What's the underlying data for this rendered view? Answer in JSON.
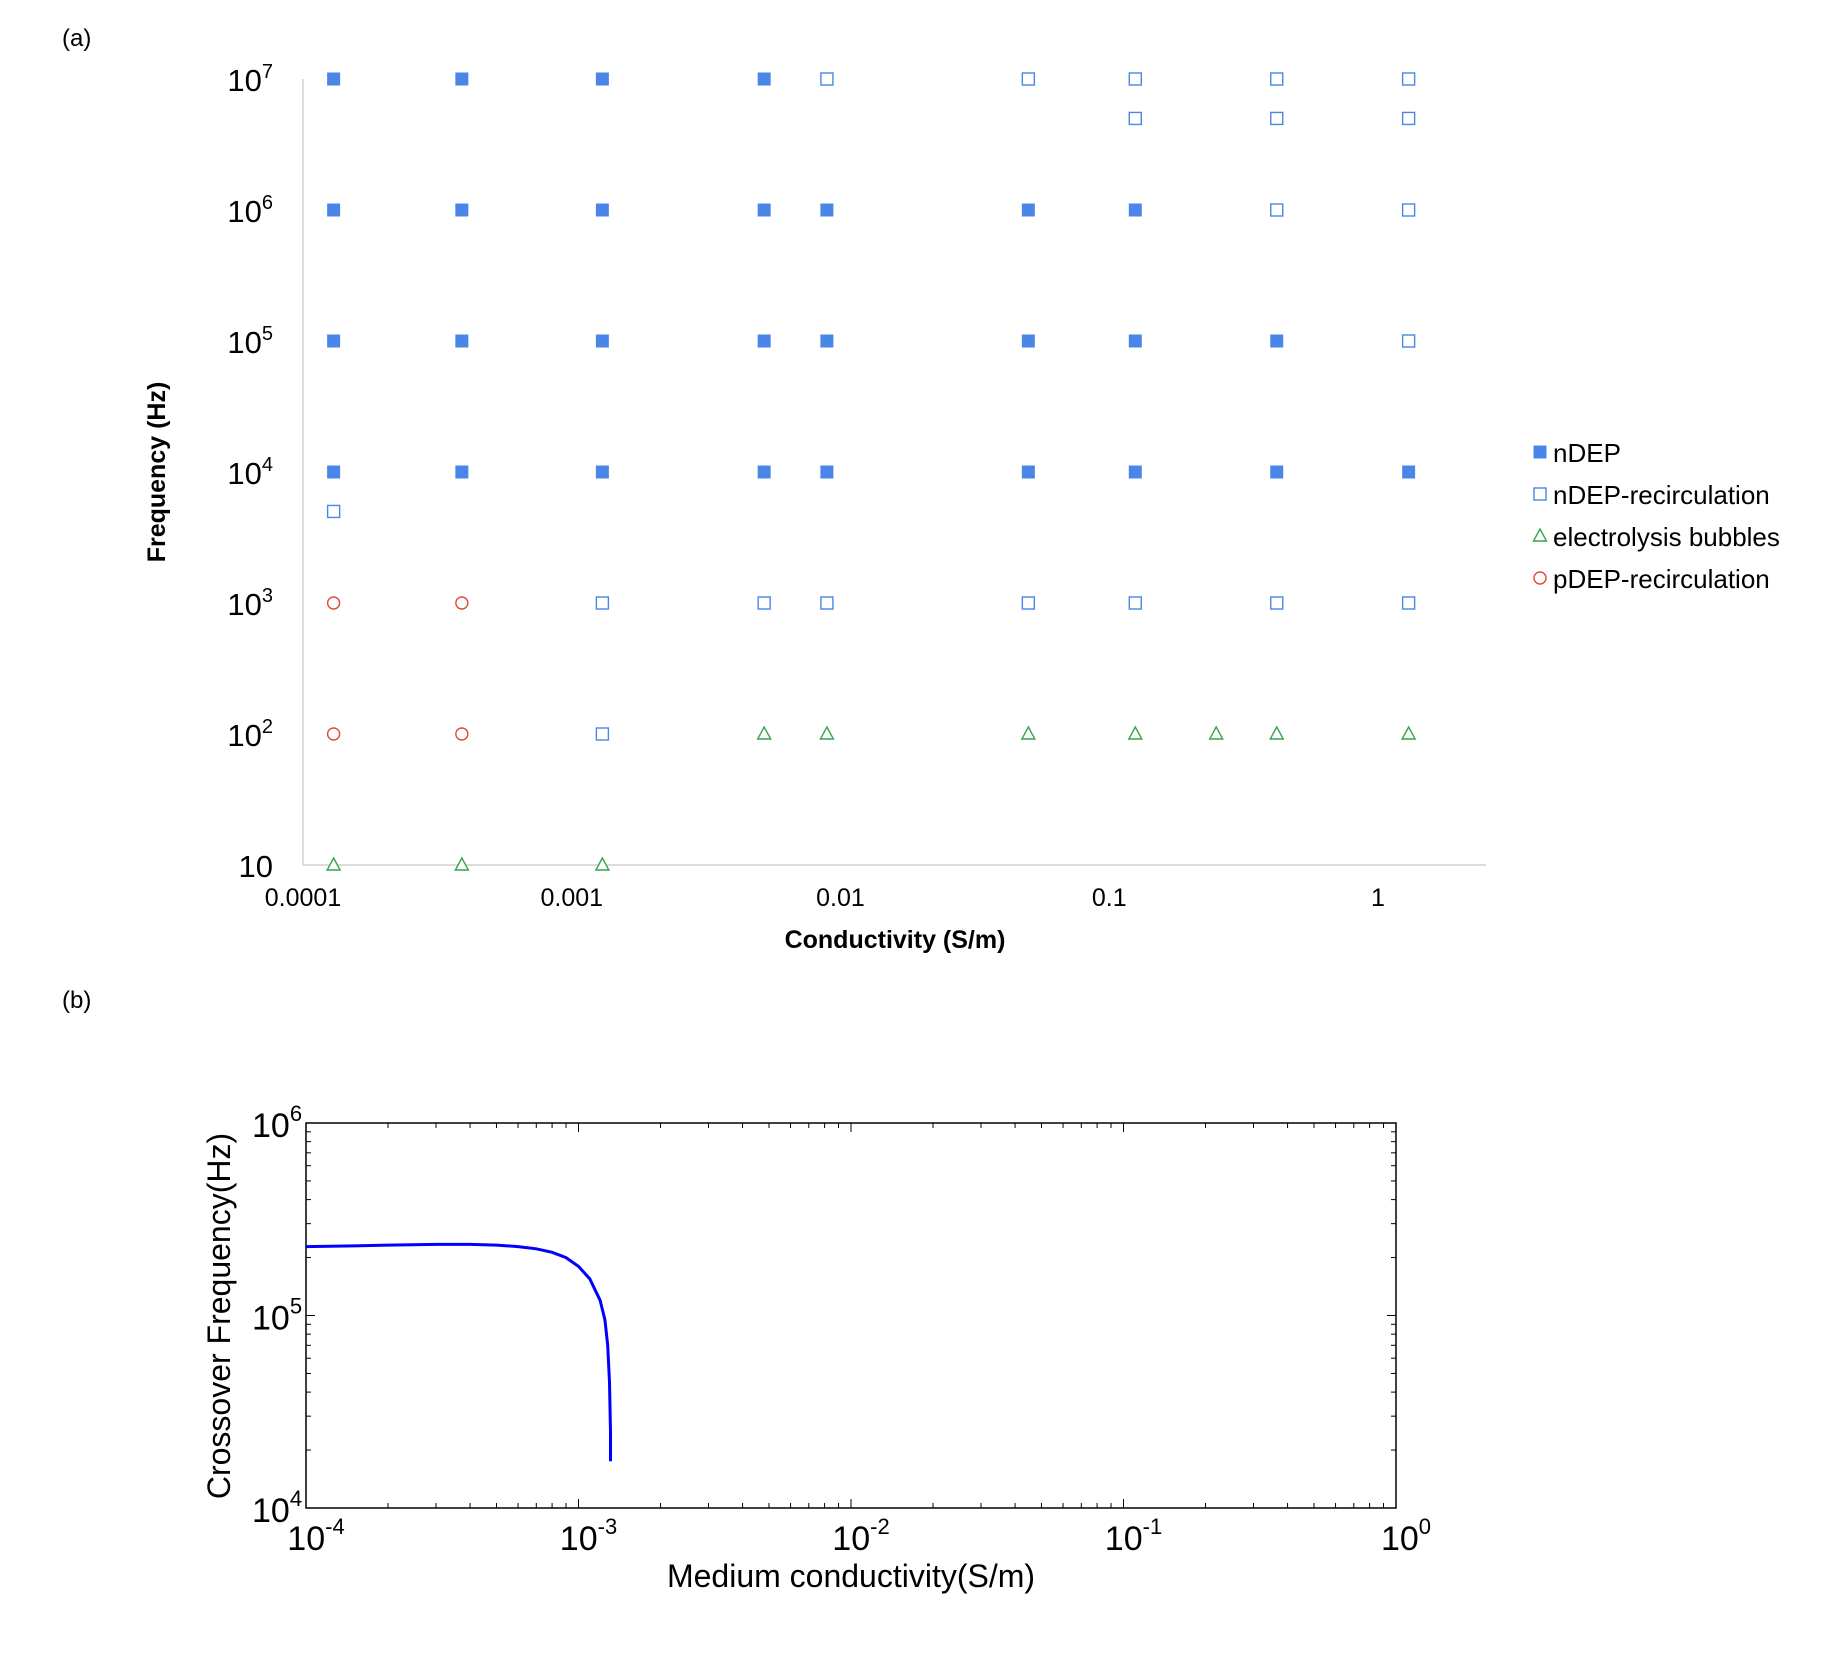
{
  "chart_data": [
    {
      "panel_label": "(a)",
      "type": "scatter",
      "xlabel": "Conductivity (S/m)",
      "ylabel": "Frequency (Hz)",
      "x_scale": "log",
      "y_scale": "log",
      "xlim": [
        0.0001,
        2.5
      ],
      "ylim": [
        10,
        10000000
      ],
      "x_ticks": [
        {
          "value": 0.0001,
          "label": "0.0001"
        },
        {
          "value": 0.001,
          "label": "0.001"
        },
        {
          "value": 0.01,
          "label": "0.01"
        },
        {
          "value": 0.1,
          "label": "0.1"
        },
        {
          "value": 1,
          "label": "1"
        }
      ],
      "y_ticks": [
        {
          "value": 10,
          "base": "10",
          "exp": ""
        },
        {
          "value": 100,
          "base": "10",
          "exp": "2"
        },
        {
          "value": 1000,
          "base": "10",
          "exp": "3"
        },
        {
          "value": 10000,
          "base": "10",
          "exp": "4"
        },
        {
          "value": 100000,
          "base": "10",
          "exp": "5"
        },
        {
          "value": 1000000,
          "base": "10",
          "exp": "6"
        },
        {
          "value": 10000000,
          "base": "10",
          "exp": "7"
        }
      ],
      "grid": false,
      "legend_position": "right",
      "series": [
        {
          "name": "nDEP",
          "marker": "filled-square",
          "color": "#4a86e8",
          "points": [
            [
              0.00013,
              10000000
            ],
            [
              0.00039,
              10000000
            ],
            [
              0.0013,
              10000000
            ],
            [
              0.0052,
              10000000
            ],
            [
              0.00013,
              1000000
            ],
            [
              0.00039,
              1000000
            ],
            [
              0.0013,
              1000000
            ],
            [
              0.0052,
              1000000
            ],
            [
              0.0089,
              1000000
            ],
            [
              0.05,
              1000000
            ],
            [
              0.125,
              1000000
            ],
            [
              0.00013,
              100000
            ],
            [
              0.00039,
              100000
            ],
            [
              0.0013,
              100000
            ],
            [
              0.0052,
              100000
            ],
            [
              0.0089,
              100000
            ],
            [
              0.05,
              100000
            ],
            [
              0.125,
              100000
            ],
            [
              0.42,
              100000
            ],
            [
              0.00013,
              10000
            ],
            [
              0.00039,
              10000
            ],
            [
              0.0013,
              10000
            ],
            [
              0.0052,
              10000
            ],
            [
              0.0089,
              10000
            ],
            [
              0.05,
              10000
            ],
            [
              0.125,
              10000
            ],
            [
              0.42,
              10000
            ],
            [
              1.3,
              10000
            ]
          ]
        },
        {
          "name": "nDEP-recirculation",
          "marker": "open-square",
          "color": "#4a86e8",
          "points": [
            [
              0.0089,
              10000000
            ],
            [
              0.05,
              10000000
            ],
            [
              0.125,
              10000000
            ],
            [
              0.42,
              10000000
            ],
            [
              1.3,
              10000000
            ],
            [
              0.125,
              5000000
            ],
            [
              0.42,
              5000000
            ],
            [
              1.3,
              5000000
            ],
            [
              0.42,
              1000000
            ],
            [
              1.3,
              1000000
            ],
            [
              1.3,
              100000
            ],
            [
              0.00013,
              5000
            ],
            [
              0.0013,
              1000
            ],
            [
              0.0052,
              1000
            ],
            [
              0.0089,
              1000
            ],
            [
              0.05,
              1000
            ],
            [
              0.125,
              1000
            ],
            [
              0.42,
              1000
            ],
            [
              1.3,
              1000
            ],
            [
              0.0013,
              100
            ]
          ]
        },
        {
          "name": "electrolysis bubbles",
          "marker": "open-triangle",
          "color": "#38a34a",
          "points": [
            [
              0.0052,
              100
            ],
            [
              0.0089,
              100
            ],
            [
              0.05,
              100
            ],
            [
              0.125,
              100
            ],
            [
              0.25,
              100
            ],
            [
              0.42,
              100
            ],
            [
              1.3,
              100
            ],
            [
              0.00013,
              10
            ],
            [
              0.00039,
              10
            ],
            [
              0.0013,
              10
            ]
          ]
        },
        {
          "name": "pDEP-recirculation",
          "marker": "open-circle",
          "color": "#e0493a",
          "points": [
            [
              0.00013,
              1000
            ],
            [
              0.00039,
              1000
            ],
            [
              0.00013,
              100
            ],
            [
              0.00039,
              100
            ]
          ]
        }
      ]
    },
    {
      "panel_label": "(b)",
      "type": "line",
      "xlabel": "Medium conductivity(S/m)",
      "ylabel": "Crossover Frequency(Hz)",
      "x_scale": "log",
      "y_scale": "log",
      "xlim": [
        0.0001,
        1
      ],
      "ylim": [
        10000,
        1000000
      ],
      "x_ticks": [
        {
          "value": 0.0001,
          "base": "10",
          "exp": "-4"
        },
        {
          "value": 0.001,
          "base": "10",
          "exp": "-3"
        },
        {
          "value": 0.01,
          "base": "10",
          "exp": "-2"
        },
        {
          "value": 0.1,
          "base": "10",
          "exp": "-1"
        },
        {
          "value": 1,
          "base": "10",
          "exp": "0"
        }
      ],
      "y_ticks": [
        {
          "value": 10000,
          "base": "10",
          "exp": "4"
        },
        {
          "value": 100000,
          "base": "10",
          "exp": "5"
        },
        {
          "value": 1000000,
          "base": "10",
          "exp": "6"
        }
      ],
      "grid": false,
      "series": [
        {
          "color": "#0000ff",
          "points": [
            [
              0.0001,
              228000
            ],
            [
              0.00015,
              230000
            ],
            [
              0.0002,
              232000
            ],
            [
              0.0003,
              234000
            ],
            [
              0.0004,
              234000
            ],
            [
              0.0005,
              232000
            ],
            [
              0.0006,
              228000
            ],
            [
              0.0007,
              222000
            ],
            [
              0.0008,
              213000
            ],
            [
              0.0009,
              200000
            ],
            [
              0.001,
              180000
            ],
            [
              0.0011,
              155000
            ],
            [
              0.0012,
              120000
            ],
            [
              0.00125,
              95000
            ],
            [
              0.00128,
              70000
            ],
            [
              0.0013,
              45000
            ],
            [
              0.00131,
              25000
            ],
            [
              0.00131,
              17500
            ]
          ]
        }
      ]
    }
  ]
}
